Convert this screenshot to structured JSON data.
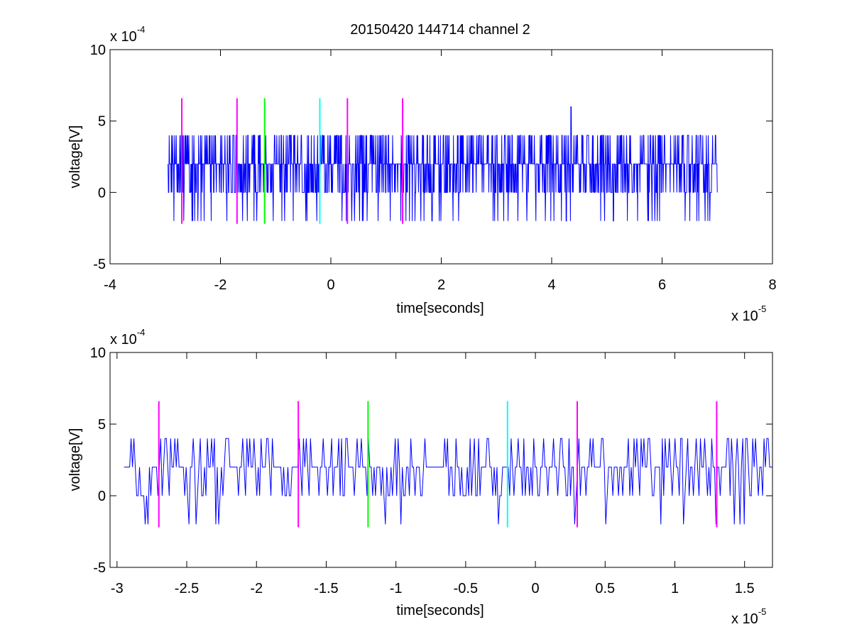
{
  "figure": {
    "title": "20150420 144714 channel 2"
  },
  "chart_data": [
    {
      "type": "line",
      "title": "20150420 144714 channel 2",
      "xlabel": "time[seconds]",
      "ylabel": "voltage[V]",
      "x_exponent_label": "x 10",
      "x_exponent": "-5",
      "y_exponent_label": "x 10",
      "y_exponent": "-4",
      "xlim": [
        -4,
        8
      ],
      "ylim": [
        -5,
        10
      ],
      "x_ticks": [
        "-4",
        "-2",
        "0",
        "2",
        "4",
        "6",
        "8"
      ],
      "y_ticks": [
        "-5",
        "0",
        "5",
        "10"
      ],
      "grid": false,
      "series": [
        {
          "color": "#0000ff",
          "levels": [
            -2,
            0,
            2,
            4,
            6
          ],
          "x_range": [
            -2.95,
            7.0
          ],
          "sample_count": 1400,
          "peak": {
            "x": 4.35,
            "y": 6
          }
        }
      ],
      "markers": [
        {
          "x": -2.7,
          "color": "#ff00ff",
          "ymin": -2.2,
          "ymax": 6.6
        },
        {
          "x": -1.7,
          "color": "#ff00ff",
          "ymin": -2.2,
          "ymax": 6.6
        },
        {
          "x": -1.2,
          "color": "#00ff00",
          "ymin": -2.2,
          "ymax": 6.6
        },
        {
          "x": -0.2,
          "color": "#00ffff",
          "ymin": -2.2,
          "ymax": 6.6
        },
        {
          "x": 0.3,
          "color": "#ff00ff",
          "ymin": -2.2,
          "ymax": 6.6
        },
        {
          "x": 1.3,
          "color": "#ff00ff",
          "ymin": -2.2,
          "ymax": 6.6
        }
      ]
    },
    {
      "type": "line",
      "title": "",
      "xlabel": "time[seconds]",
      "ylabel": "voltage[V]",
      "x_exponent_label": "x 10",
      "x_exponent": "-5",
      "y_exponent_label": "x 10",
      "y_exponent": "-4",
      "xlim": [
        -3.05,
        1.7
      ],
      "ylim": [
        -5,
        10
      ],
      "x_ticks": [
        "-3",
        "-2.5",
        "-2",
        "-1.5",
        "-1",
        "-0.5",
        "0",
        "0.5",
        "1",
        "1.5"
      ],
      "x_tick_values": [
        -3,
        -2.5,
        -2,
        -1.5,
        -1,
        -0.5,
        0,
        0.5,
        1,
        1.5
      ],
      "y_ticks": [
        "-5",
        "0",
        "5",
        "10"
      ],
      "grid": false,
      "series": [
        {
          "color": "#0000ff",
          "levels": [
            -2,
            0,
            2,
            4
          ],
          "x_range": [
            -2.95,
            1.7
          ],
          "sample_count": 460
        }
      ],
      "markers": [
        {
          "x": -2.7,
          "color": "#ff00ff",
          "ymin": -2.2,
          "ymax": 6.6
        },
        {
          "x": -1.7,
          "color": "#ff00ff",
          "ymin": -2.2,
          "ymax": 6.6
        },
        {
          "x": -1.2,
          "color": "#00ff00",
          "ymin": -2.2,
          "ymax": 6.6
        },
        {
          "x": -0.2,
          "color": "#00ffff",
          "ymin": -2.2,
          "ymax": 6.6
        },
        {
          "x": 0.3,
          "color": "#ff00ff",
          "ymin": -2.2,
          "ymax": 6.6
        },
        {
          "x": 1.3,
          "color": "#ff00ff",
          "ymin": -2.2,
          "ymax": 6.6
        }
      ]
    }
  ]
}
